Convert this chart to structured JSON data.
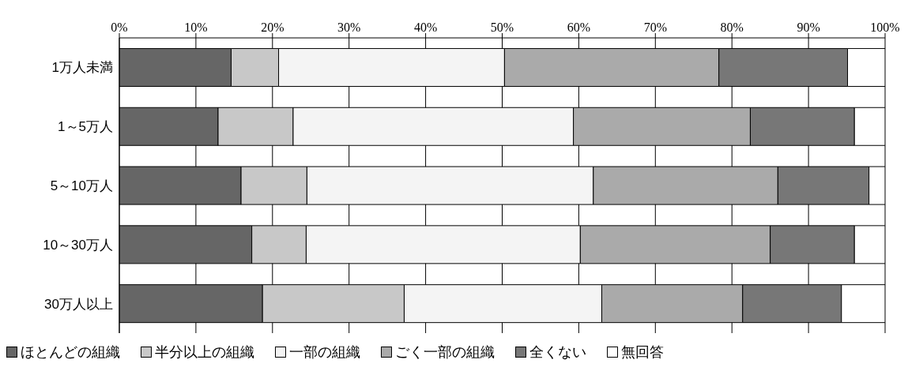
{
  "chart_data": {
    "type": "bar",
    "orientation": "horizontal",
    "stacked": true,
    "categories": [
      "1万人未満",
      "1～5万人",
      "5～10万人",
      "10～30万人",
      "30万人以上"
    ],
    "series": [
      {
        "name": "ほとんどの組織",
        "color": "#666666",
        "values": [
          14.6,
          12.9,
          15.9,
          17.3,
          18.7
        ]
      },
      {
        "name": "半分以上の組織",
        "color": "#c8c8c8",
        "values": [
          6.2,
          9.8,
          8.6,
          7.1,
          18.5
        ]
      },
      {
        "name": "一部の組織",
        "color": "#f4f4f4",
        "values": [
          29.5,
          36.6,
          37.4,
          35.8,
          25.8
        ]
      },
      {
        "name": "ごく一部の組織",
        "color": "#aaaaaa",
        "values": [
          28.0,
          23.1,
          24.1,
          24.8,
          18.4
        ]
      },
      {
        "name": "全くない",
        "color": "#777777",
        "values": [
          16.8,
          13.6,
          11.9,
          11.0,
          12.9
        ]
      },
      {
        "name": "無回答",
        "color": "#ffffff",
        "values": [
          4.9,
          4.0,
          2.1,
          4.0,
          5.7
        ]
      }
    ],
    "xlim": [
      0,
      100
    ],
    "xticks": [
      {
        "value": 0,
        "label": "0%"
      },
      {
        "value": 10,
        "label": "10%"
      },
      {
        "value": 20,
        "label": "20%"
      },
      {
        "value": 30,
        "label": "30%"
      },
      {
        "value": 40,
        "label": "40%"
      },
      {
        "value": 50,
        "label": "50%"
      },
      {
        "value": 60,
        "label": "60%"
      },
      {
        "value": 70,
        "label": "70%"
      },
      {
        "value": 80,
        "label": "80%"
      },
      {
        "value": 90,
        "label": "90%"
      },
      {
        "value": 100,
        "label": "100%"
      }
    ],
    "grid": "x",
    "legend": "bottom"
  }
}
